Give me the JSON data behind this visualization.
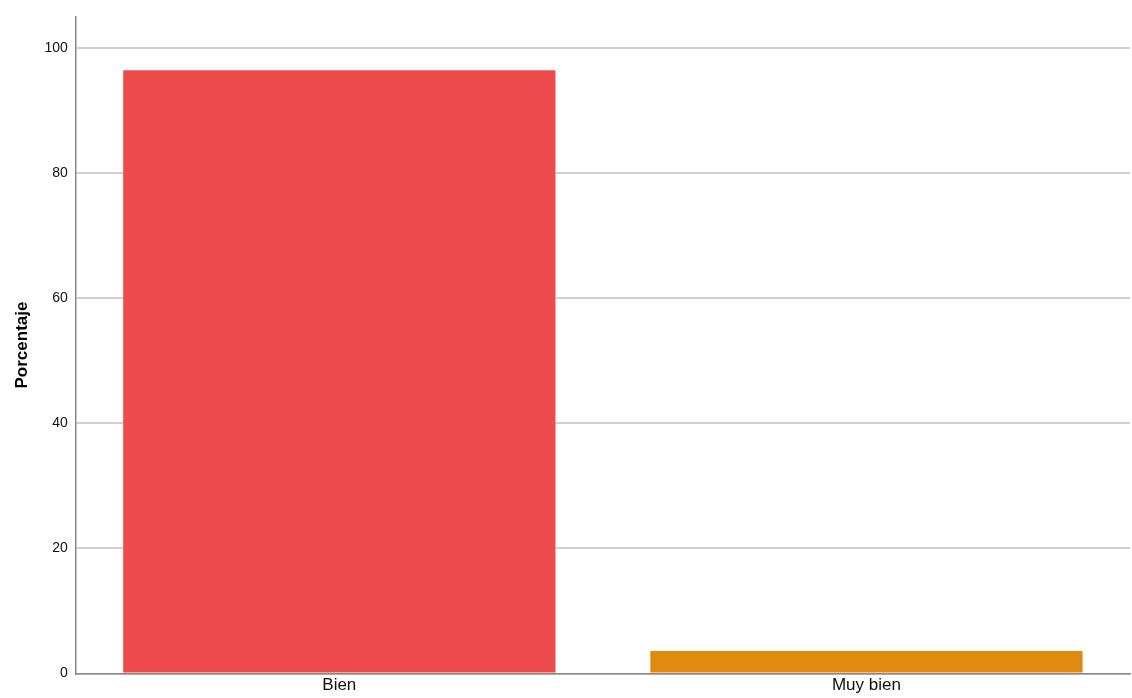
{
  "chart_data": {
    "type": "bar",
    "ylabel": "Porcentaje",
    "categories": [
      "Bien",
      "Muy bien"
    ],
    "values": [
      96.4,
      3.6
    ],
    "colors": [
      "#ec4a4b",
      "#e08a10"
    ],
    "ylim": [
      0,
      105
    ],
    "yticks": [
      0,
      20,
      40,
      60,
      80,
      100
    ],
    "grid": "y",
    "legend": false
  }
}
